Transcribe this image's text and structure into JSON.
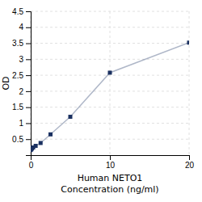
{
  "chart_data": {
    "type": "line",
    "x": [
      0,
      0.078,
      0.156,
      0.313,
      0.625,
      1.25,
      2.5,
      5,
      10,
      20
    ],
    "values": [
      0.158,
      0.183,
      0.21,
      0.24,
      0.29,
      0.38,
      0.65,
      1.2,
      2.58,
      3.52
    ],
    "xlabel": [
      "Human NETO1",
      "Concentration (ng/ml)"
    ],
    "ylabel": "OD",
    "xlim": [
      0,
      20
    ],
    "ylim": [
      0,
      4.5
    ],
    "xticks": [
      0,
      10,
      20
    ],
    "yticks": [
      0.5,
      1,
      1.5,
      2,
      2.5,
      3,
      3.5,
      4,
      4.5
    ],
    "color": "#1a3060",
    "marker": "square",
    "grid": true
  }
}
